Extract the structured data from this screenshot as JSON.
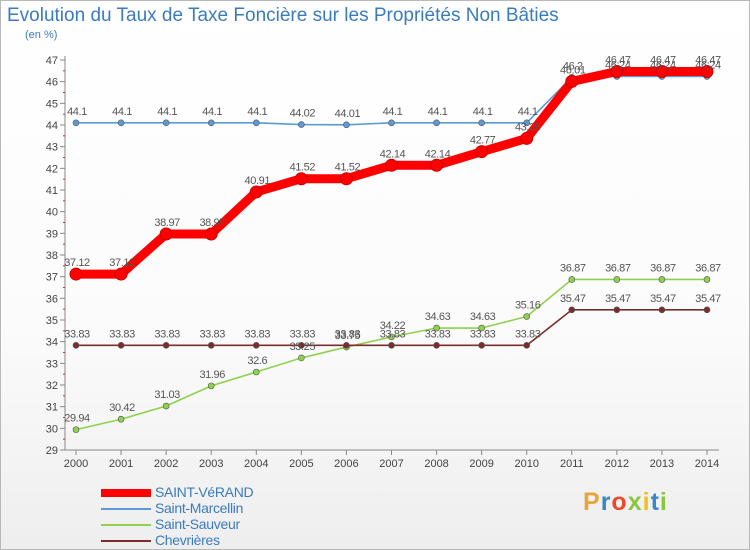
{
  "chart_data": {
    "type": "line",
    "title": "Evolution du Taux de Taxe Foncière sur les Propriétés Non Bâties",
    "subtitle": "(en %)",
    "xlabel": "",
    "ylabel": "(en %)",
    "ylim": [
      29,
      47
    ],
    "grid": false,
    "legend_position": "bottom-left",
    "categories": [
      "2000",
      "2001",
      "2002",
      "2003",
      "2004",
      "2005",
      "2006",
      "2007",
      "2008",
      "2009",
      "2010",
      "2011",
      "2012",
      "2013",
      "2014"
    ],
    "y_ticks": [
      "29",
      "30",
      "31",
      "32",
      "33",
      "34",
      "35",
      "36",
      "37",
      "38",
      "39",
      "40",
      "41",
      "42",
      "43",
      "44",
      "45",
      "46",
      "47"
    ],
    "series": [
      {
        "name": "SAINT-VéRAND",
        "color": "#ff0000",
        "emphasis": true,
        "values": [
          37.12,
          37.12,
          38.97,
          38.97,
          40.91,
          41.52,
          41.52,
          42.14,
          42.14,
          42.77,
          43.38,
          46.01,
          46.47,
          46.47,
          46.47
        ],
        "labels": [
          "37.12",
          "37.12",
          "38.97",
          "38.97",
          "40.91",
          "41.52",
          "41.52",
          "42.14",
          "42.14",
          "42.77",
          "43.38",
          "46.01",
          "46.47",
          "46.47",
          "46.47"
        ]
      },
      {
        "name": "Saint-Marcellin",
        "color": "#5b9bd5",
        "emphasis": false,
        "values": [
          44.1,
          44.1,
          44.1,
          44.1,
          44.1,
          44.02,
          44.01,
          44.1,
          44.1,
          44.1,
          44.1,
          46.2,
          46.24,
          46.24,
          46.24
        ],
        "labels": [
          "44.1",
          "44.1",
          "44.1",
          "44.1",
          "44.1",
          "44.02",
          "44.01",
          "44.1",
          "44.1",
          "44.1",
          "44.1",
          "46.2",
          "46.24",
          "46.24",
          "46.24"
        ]
      },
      {
        "name": "Saint-Sauveur",
        "color": "#8fd14f",
        "emphasis": false,
        "values": [
          29.94,
          30.42,
          31.03,
          31.96,
          32.6,
          33.25,
          33.75,
          34.22,
          34.63,
          34.63,
          35.16,
          36.87,
          36.87,
          36.87,
          36.87
        ],
        "labels": [
          "29.94",
          "30.42",
          "31.03",
          "31.96",
          "32.6",
          "33.25",
          "33.75",
          "34.22",
          "34.63",
          "34.63",
          "35.16",
          "36.87",
          "36.87",
          "36.87",
          "36.87"
        ]
      },
      {
        "name": "Chevrières",
        "color": "#7b2d2d",
        "emphasis": false,
        "values": [
          33.83,
          33.83,
          33.83,
          33.83,
          33.83,
          33.83,
          33.83,
          33.83,
          33.83,
          33.83,
          33.83,
          35.47,
          35.47,
          35.47,
          35.47
        ],
        "labels": [
          "33.83",
          "33.83",
          "33.83",
          "33.83",
          "33.83",
          "33.83",
          "33.83",
          "33.83",
          "33.83",
          "33.83",
          "33.83",
          "35.47",
          "35.47",
          "35.47",
          "35.47"
        ]
      }
    ]
  },
  "brand": {
    "text": "Proxiti",
    "colors": [
      "#e8a63a",
      "#3a86c8",
      "#e84a2a",
      "#8cc63e",
      "#f0c020",
      "#3a86c8",
      "#8cc63e"
    ]
  }
}
